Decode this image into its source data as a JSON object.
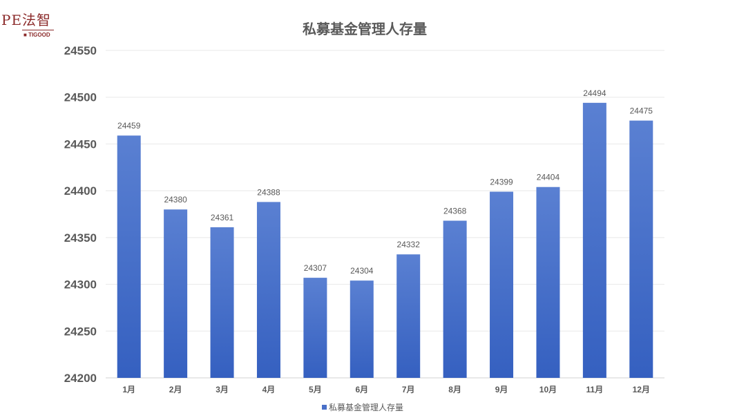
{
  "logo": {
    "main": "PE法智",
    "sub": "TIGOOD"
  },
  "chart_data": {
    "type": "bar",
    "title": "私募基金管理人存量",
    "categories": [
      "1月",
      "2月",
      "3月",
      "4月",
      "5月",
      "6月",
      "7月",
      "8月",
      "9月",
      "10月",
      "11月",
      "12月"
    ],
    "series": [
      {
        "name": "私募基金管理人存量",
        "values": [
          24459,
          24380,
          24361,
          24388,
          24307,
          24304,
          24332,
          24368,
          24399,
          24404,
          24494,
          24475
        ]
      }
    ],
    "ylim": [
      24200,
      24550
    ],
    "yticks": [
      24200,
      24250,
      24300,
      24350,
      24400,
      24450,
      24500,
      24550
    ],
    "grid": true,
    "legend": "bottom",
    "colors": {
      "bar_top": "#5a80d2",
      "bar_bottom": "#3560c0",
      "text": "#595959"
    }
  }
}
